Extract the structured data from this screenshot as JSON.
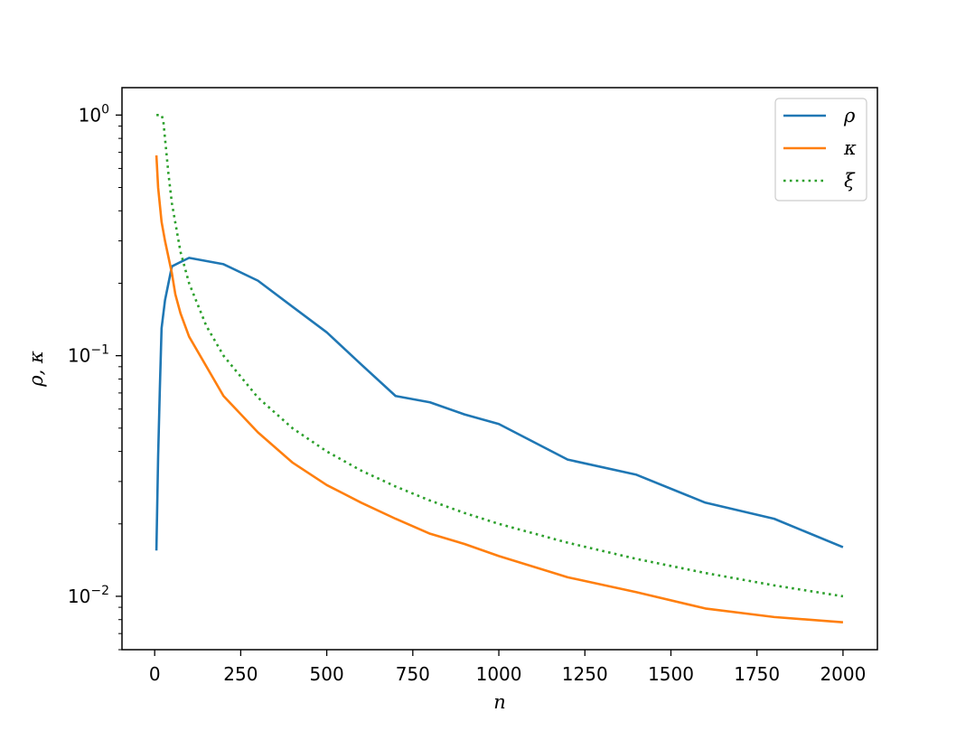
{
  "chart_data": {
    "type": "line",
    "title": "",
    "xlabel": "n",
    "ylabel": "ρ, κ",
    "xlim": [
      -95,
      2100
    ],
    "ylim": [
      0.006,
      1.3
    ],
    "yscale": "log",
    "grid": false,
    "legend_position": "top-right",
    "x_ticks": [
      0,
      250,
      500,
      750,
      1000,
      1250,
      1500,
      1750,
      2000
    ],
    "x_tick_labels": [
      "0",
      "250",
      "500",
      "750",
      "1000",
      "1250",
      "1500",
      "1750",
      "2000"
    ],
    "y_ticks": [
      {
        "value": 1,
        "base": "10",
        "exp": "0"
      },
      {
        "value": 0.1,
        "base": "10",
        "exp": "−1"
      },
      {
        "value": 0.01,
        "base": "10",
        "exp": "−2"
      }
    ],
    "series": [
      {
        "name": "ρ",
        "color": "#1f77b4",
        "style": "solid",
        "x": [
          5,
          10,
          15,
          20,
          30,
          50,
          75,
          100,
          200,
          300,
          400,
          500,
          600,
          700,
          800,
          900,
          1000,
          1200,
          1400,
          1600,
          1800,
          2000
        ],
        "y": [
          0.0155,
          0.038,
          0.073,
          0.13,
          0.17,
          0.235,
          0.245,
          0.255,
          0.24,
          0.205,
          0.16,
          0.125,
          0.092,
          0.068,
          0.064,
          0.057,
          0.052,
          0.037,
          0.032,
          0.0245,
          0.021,
          0.016
        ]
      },
      {
        "name": "κ",
        "color": "#ff7f0e",
        "style": "solid",
        "x": [
          5,
          10,
          20,
          30,
          50,
          60,
          75,
          100,
          200,
          300,
          400,
          500,
          600,
          700,
          800,
          900,
          1000,
          1200,
          1400,
          1600,
          1800,
          2000
        ],
        "y": [
          0.68,
          0.5,
          0.36,
          0.3,
          0.22,
          0.18,
          0.15,
          0.12,
          0.068,
          0.048,
          0.036,
          0.029,
          0.0245,
          0.021,
          0.0182,
          0.0165,
          0.0147,
          0.012,
          0.0104,
          0.0089,
          0.0082,
          0.0078
        ]
      },
      {
        "name": "ξ",
        "color": "#2ca02c",
        "style": "dotted",
        "x": [
          5,
          20,
          25,
          30,
          40,
          50,
          75,
          100,
          150,
          200,
          300,
          400,
          500,
          600,
          700,
          800,
          900,
          1000,
          1200,
          1400,
          1600,
          1800,
          2000
        ],
        "y": [
          1.0,
          1.0,
          0.95,
          0.8,
          0.57,
          0.43,
          0.27,
          0.2,
          0.133,
          0.1,
          0.067,
          0.05,
          0.04,
          0.0333,
          0.0286,
          0.025,
          0.0222,
          0.02,
          0.0167,
          0.0143,
          0.0125,
          0.0111,
          0.01
        ]
      }
    ]
  }
}
